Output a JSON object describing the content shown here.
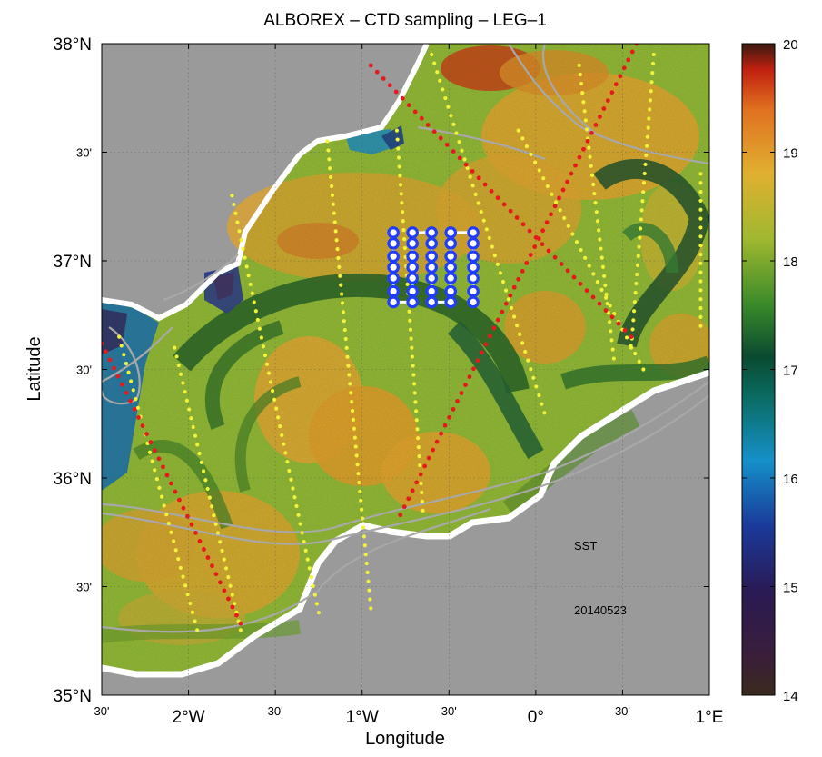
{
  "title": "ALBOREX – CTD sampling – LEG–1",
  "xlabel": "Longitude",
  "ylabel": "Latitude",
  "x_ticks": [
    {
      "lon": -2.5,
      "label": "30'",
      "size": "small"
    },
    {
      "lon": -2.0,
      "label": "2°W",
      "size": "big"
    },
    {
      "lon": -1.5,
      "label": "30'",
      "size": "small"
    },
    {
      "lon": -1.0,
      "label": "1°W",
      "size": "big"
    },
    {
      "lon": -0.5,
      "label": "30'",
      "size": "small"
    },
    {
      "lon": 0.0,
      "label": "0°",
      "size": "big"
    },
    {
      "lon": 0.5,
      "label": "30'",
      "size": "small"
    },
    {
      "lon": 1.0,
      "label": "1°E",
      "size": "big"
    }
  ],
  "y_ticks": [
    {
      "lat": 38.0,
      "label": "38°N",
      "size": "big"
    },
    {
      "lat": 37.5,
      "label": "30'",
      "size": "small"
    },
    {
      "lat": 37.0,
      "label": "37°N",
      "size": "big"
    },
    {
      "lat": 36.5,
      "label": "30'",
      "size": "small"
    },
    {
      "lat": 36.0,
      "label": "36°N",
      "size": "big"
    },
    {
      "lat": 35.5,
      "label": "30'",
      "size": "small"
    },
    {
      "lat": 35.0,
      "label": "35°N",
      "size": "big"
    }
  ],
  "lon_range": [
    -2.5,
    1.0
  ],
  "lat_range": [
    35.0,
    38.0
  ],
  "annotations": {
    "variable": "SST",
    "date": "20140523"
  },
  "colorbar": {
    "min": 14,
    "max": 20,
    "ticks": [
      14,
      15,
      16,
      17,
      18,
      19,
      20
    ],
    "colors": [
      "#3a2a1e",
      "#2a1a55",
      "#1a3a9a",
      "#1590c8",
      "#0a5a3a",
      "#3a8a2a",
      "#a0b830",
      "#e0b030",
      "#e07020",
      "#c02010",
      "#3a1a10"
    ]
  },
  "colors": {
    "land": "#9a9a9a",
    "red_track": "#e41a1c",
    "yellow_track": "#f2f23a",
    "ctd_station": "#1f3cff",
    "isobath": "#a8a8a8"
  },
  "chart_data": {
    "type": "map",
    "title": "ALBOREX – CTD sampling – LEG–1",
    "xlabel": "Longitude",
    "ylabel": "Latitude",
    "xlim": [
      -2.5,
      1.0
    ],
    "ylim": [
      35.0,
      38.0
    ],
    "grid": true,
    "colorbar_range": [
      14,
      20
    ],
    "ctd_grid": {
      "lons": [
        -0.82,
        -0.71,
        -0.6,
        -0.49,
        -0.36
      ],
      "lats": [
        37.13,
        37.08,
        37.02,
        36.97,
        36.92,
        36.86,
        36.81
      ]
    },
    "red_tracks": [
      {
        "name": "",
        "from": [
          -2.5,
          36.62
        ],
        "to": [
          -1.7,
          35.33
        ]
      },
      {
        "name": "",
        "from": [
          -0.95,
          37.9
        ],
        "to": [
          0.55,
          36.65
        ]
      },
      {
        "name": "",
        "from": [
          -0.78,
          35.83
        ],
        "to": [
          0.58,
          38.0
        ]
      }
    ],
    "yellow_tracks": [
      {
        "name": "",
        "from": [
          -2.4,
          36.65
        ],
        "to": [
          -1.95,
          35.3
        ]
      },
      {
        "name": "",
        "from": [
          -2.08,
          36.6
        ],
        "to": [
          -1.7,
          35.3
        ]
      },
      {
        "name": "",
        "from": [
          -1.75,
          37.3
        ],
        "to": [
          -1.25,
          35.38
        ]
      },
      {
        "name": "",
        "from": [
          -1.2,
          37.55
        ],
        "to": [
          -0.95,
          35.4
        ]
      },
      {
        "name": "",
        "from": [
          -0.8,
          37.6
        ],
        "to": [
          -0.65,
          35.85
        ]
      },
      {
        "name": "",
        "from": [
          -0.6,
          37.95
        ],
        "to": [
          0.05,
          36.3
        ]
      },
      {
        "name": "",
        "from": [
          -0.1,
          37.6
        ],
        "to": [
          0.62,
          36.5
        ]
      },
      {
        "name": "",
        "from": [
          0.25,
          37.9
        ],
        "to": [
          0.45,
          36.55
        ]
      },
      {
        "name": "",
        "from": [
          0.68,
          37.95
        ],
        "to": [
          0.55,
          36.6
        ]
      },
      {
        "name": "",
        "from": [
          0.95,
          37.4
        ],
        "to": [
          0.95,
          36.7
        ]
      }
    ],
    "annotations": [
      "SST",
      "20140523"
    ]
  }
}
